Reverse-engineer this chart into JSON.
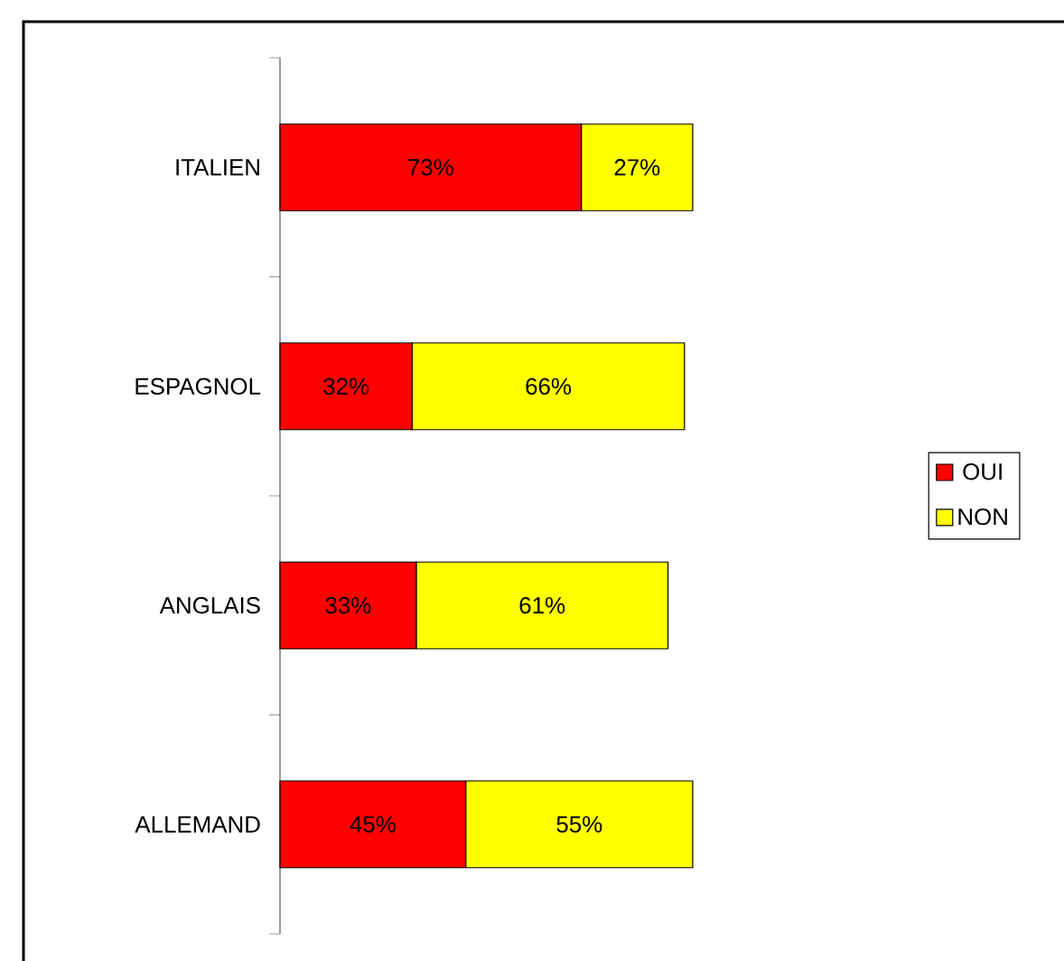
{
  "chart_data": {
    "type": "bar",
    "orientation": "horizontal",
    "stacked": true,
    "legend": "right",
    "categories": [
      "ITALIEN",
      "ESPAGNOL",
      "ANGLAIS",
      "ALLEMAND"
    ],
    "series": [
      {
        "name": "OUI",
        "color": "#ff0000",
        "values": [
          73,
          32,
          33,
          45
        ],
        "value_labels": [
          "73%",
          "32%",
          "33%",
          "45%"
        ]
      },
      {
        "name": "NON",
        "color": "#ffff00",
        "values": [
          27,
          66,
          61,
          55
        ],
        "value_labels": [
          "27%",
          "66%",
          "61%",
          "55%"
        ]
      }
    ]
  }
}
